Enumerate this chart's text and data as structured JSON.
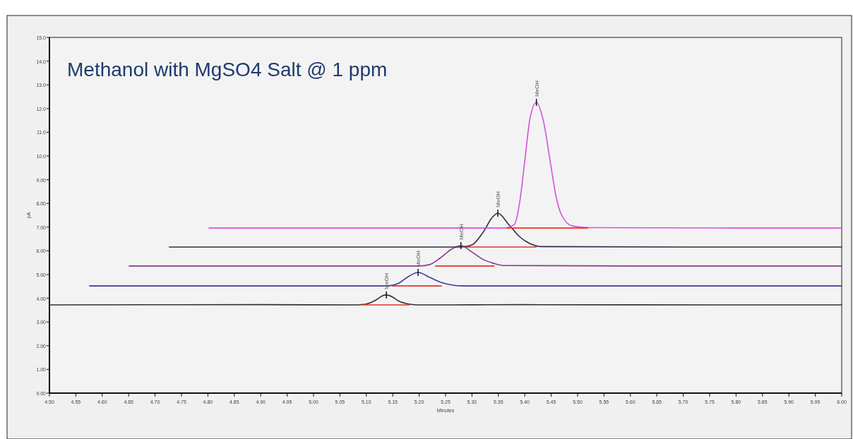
{
  "chart_data": {
    "type": "line",
    "title": "Methanol with MgSO4 Salt @ 1 ppm",
    "xlabel": "Minutes",
    "ylabel": "pA",
    "xlim": [
      4.5,
      6.0
    ],
    "xticks": [
      {
        "value": 4.5,
        "label": "4.50"
      },
      {
        "value": 4.55,
        "label": "4.55"
      },
      {
        "value": 4.6,
        "label": "4.60"
      },
      {
        "value": 4.65,
        "label": "4.65"
      },
      {
        "value": 4.7,
        "label": "4.70"
      },
      {
        "value": 4.75,
        "label": "4.75"
      },
      {
        "value": 4.8,
        "label": "4.80"
      },
      {
        "value": 4.85,
        "label": "4.85"
      },
      {
        "value": 4.9,
        "label": "4.90"
      },
      {
        "value": 4.95,
        "label": "4.95"
      },
      {
        "value": 5.0,
        "label": "5.00"
      },
      {
        "value": 5.05,
        "label": "5.05"
      },
      {
        "value": 5.1,
        "label": "5.10"
      },
      {
        "value": 5.15,
        "label": "5.15"
      },
      {
        "value": 5.2,
        "label": "5.20"
      },
      {
        "value": 5.25,
        "label": "5.25"
      },
      {
        "value": 5.3,
        "label": "5.30"
      },
      {
        "value": 5.35,
        "label": "5.35"
      },
      {
        "value": 5.4,
        "label": "5.40"
      },
      {
        "value": 5.45,
        "label": "5.45"
      },
      {
        "value": 5.5,
        "label": "5.50"
      },
      {
        "value": 5.55,
        "label": "5.55"
      },
      {
        "value": 5.6,
        "label": "5.60"
      },
      {
        "value": 5.65,
        "label": "5.65"
      },
      {
        "value": 5.7,
        "label": "5.70"
      },
      {
        "value": 5.75,
        "label": "5.75"
      },
      {
        "value": 5.8,
        "label": "5.80"
      },
      {
        "value": 5.85,
        "label": "5.85"
      },
      {
        "value": 5.9,
        "label": "5.90"
      },
      {
        "value": 5.95,
        "label": "5.95"
      },
      {
        "value": 6.0,
        "label": "6.00"
      }
    ],
    "ylim": [
      0,
      15
    ],
    "yticks": [
      {
        "value": 0,
        "label": "0.00"
      },
      {
        "value": 1,
        "label": "1.00"
      },
      {
        "value": 2,
        "label": "2.00"
      },
      {
        "value": 3,
        "label": "3.00"
      },
      {
        "value": 4,
        "label": "4.00"
      },
      {
        "value": 5,
        "label": "5.00"
      },
      {
        "value": 6,
        "label": "6.00"
      },
      {
        "value": 7,
        "label": "7.00"
      },
      {
        "value": 8,
        "label": "8.00"
      },
      {
        "value": 9,
        "label": "9.00"
      },
      {
        "value": 10,
        "label": "10.0"
      },
      {
        "value": 11,
        "label": "11.0"
      },
      {
        "value": 12,
        "label": "12.0"
      },
      {
        "value": 13,
        "label": "13.0"
      },
      {
        "value": 14,
        "label": "14.0"
      },
      {
        "value": 15,
        "label": "15.0"
      }
    ],
    "grid": false,
    "marker": "none",
    "line_style": "solid",
    "series": [
      {
        "color": "#333333",
        "x": [
          4.5,
          4.9,
          5.08,
          5.1,
          5.12,
          5.13,
          5.138,
          5.15,
          5.16,
          5.18,
          5.2,
          5.4,
          5.8,
          6.0
        ],
        "values": [
          3.72,
          3.73,
          3.72,
          3.76,
          3.95,
          4.1,
          4.14,
          4.05,
          3.9,
          3.76,
          3.72,
          3.73,
          3.72,
          3.72
        ]
      },
      {
        "color": "#3b3b9a",
        "x": [
          4.576,
          5.0,
          5.14,
          5.16,
          5.18,
          5.198,
          5.22,
          5.24,
          5.26,
          5.28,
          5.6,
          6.0
        ],
        "values": [
          4.52,
          4.52,
          4.52,
          4.62,
          4.92,
          5.09,
          4.88,
          4.68,
          4.57,
          4.52,
          4.52,
          4.52
        ]
      },
      {
        "color": "#8a3a8f",
        "x": [
          4.651,
          5.2,
          5.22,
          5.24,
          5.26,
          5.279,
          5.3,
          5.32,
          5.34,
          5.36,
          5.6,
          6.0
        ],
        "values": [
          5.36,
          5.36,
          5.42,
          5.7,
          6.05,
          6.22,
          5.95,
          5.65,
          5.48,
          5.38,
          5.36,
          5.36
        ]
      },
      {
        "color": "#2a2f45",
        "x": [
          4.727,
          5.28,
          5.3,
          5.32,
          5.34,
          5.349,
          5.37,
          5.39,
          5.41,
          5.43,
          5.7,
          6.0
        ],
        "values": [
          6.16,
          6.16,
          6.25,
          6.75,
          7.45,
          7.59,
          7.1,
          6.6,
          6.3,
          6.18,
          6.16,
          6.16
        ]
      },
      {
        "color": "#d94fd9",
        "x": [
          4.802,
          5.36,
          5.38,
          5.39,
          5.4,
          5.41,
          5.422,
          5.435,
          5.45,
          5.46,
          5.47,
          5.49,
          5.52,
          5.8,
          6.0
        ],
        "values": [
          6.96,
          6.96,
          7.1,
          8.0,
          9.8,
          11.6,
          12.26,
          11.5,
          9.5,
          8.2,
          7.5,
          7.05,
          6.98,
          6.96,
          6.96
        ]
      },
      {
        "color": "#e8332a",
        "x": [
          5.092,
          5.182
        ],
        "values": [
          3.72,
          3.72
        ]
      },
      {
        "color": "#e8332a",
        "x": [
          5.15,
          5.242
        ],
        "values": [
          4.52,
          4.52
        ]
      },
      {
        "color": "#e8332a",
        "x": [
          5.231,
          5.342
        ],
        "values": [
          5.36,
          5.36
        ]
      },
      {
        "color": "#e8332a",
        "x": [
          5.29,
          5.422
        ],
        "values": [
          6.16,
          6.16
        ]
      },
      {
        "color": "#e8332a",
        "x": [
          5.366,
          5.519
        ],
        "values": [
          6.96,
          6.96
        ]
      }
    ],
    "annotations": [
      {
        "text": "MeOH",
        "x": 5.138,
        "y": 4.14
      },
      {
        "text": "MeOH",
        "x": 5.198,
        "y": 5.09
      },
      {
        "text": "MeOH",
        "x": 5.279,
        "y": 6.22
      },
      {
        "text": "MeOH",
        "x": 5.349,
        "y": 7.59
      },
      {
        "text": "MeOH",
        "x": 5.422,
        "y": 12.26
      }
    ]
  }
}
